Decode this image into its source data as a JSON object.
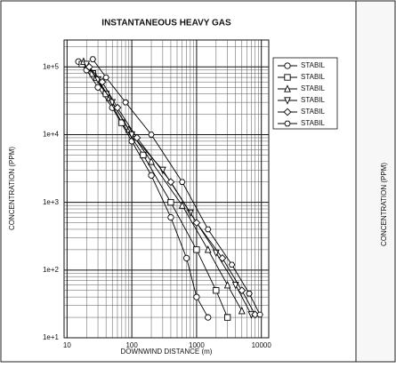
{
  "chart_data": {
    "type": "line",
    "title": "INSTANTANEOUS HEAVY GAS",
    "x_label": "DOWNWIND DISTANCE (m)",
    "y_label": "CONCENTRATION (PPM)",
    "log_x": true,
    "log_y": true,
    "grid": true,
    "legend": "upper right",
    "xlim": [
      9,
      13000
    ],
    "ylim": [
      10,
      250000
    ],
    "xticks": [
      10,
      100,
      1000,
      10000
    ],
    "yticks": [
      {
        "value": 10,
        "label": "1e+1"
      },
      {
        "value": 100,
        "label": "1e+2"
      },
      {
        "value": 1000,
        "label": "1e+3"
      },
      {
        "value": 10000,
        "label": "1e+4"
      },
      {
        "value": 100000,
        "label": "1e+5"
      }
    ],
    "series": [
      {
        "name": "STABIL",
        "color": "#000000",
        "marker": "circle",
        "x": [
          15,
          20,
          30,
          50,
          100,
          200,
          400,
          700,
          1000,
          1500
        ],
        "values": [
          120000,
          90000,
          50000,
          25000,
          8000,
          2500,
          600,
          150,
          40,
          20
        ]
      },
      {
        "name": "STABIL",
        "color": "#000000",
        "marker": "square",
        "x": [
          17,
          25,
          40,
          70,
          150,
          400,
          1000,
          2000,
          3000
        ],
        "values": [
          110000,
          80000,
          40000,
          15000,
          5000,
          1000,
          200,
          50,
          20
        ]
      },
      {
        "name": "STABIL",
        "color": "#000000",
        "marker": "triangle-up",
        "x": [
          18,
          28,
          45,
          90,
          200,
          600,
          1500,
          3000,
          5000
        ],
        "values": [
          120000,
          70000,
          35000,
          12000,
          4000,
          900,
          200,
          60,
          25
        ]
      },
      {
        "name": "STABIL",
        "color": "#000000",
        "marker": "triangle-down",
        "x": [
          20,
          30,
          50,
          100,
          300,
          800,
          2000,
          4000,
          7000
        ],
        "values": [
          110000,
          65000,
          30000,
          10000,
          3000,
          700,
          180,
          60,
          22
        ]
      },
      {
        "name": "STABIL",
        "color": "#000000",
        "marker": "diamond",
        "x": [
          22,
          35,
          60,
          120,
          400,
          1000,
          2500,
          5000,
          8000
        ],
        "values": [
          100000,
          60000,
          25000,
          9000,
          2000,
          500,
          150,
          50,
          22
        ]
      },
      {
        "name": "STABIL",
        "color": "#000000",
        "marker": "hexagon",
        "x": [
          25,
          40,
          80,
          200,
          600,
          1500,
          3500,
          6500,
          9500
        ],
        "values": [
          130000,
          70000,
          30000,
          10000,
          2000,
          400,
          120,
          45,
          22
        ]
      }
    ]
  },
  "side_panel": {
    "y_label": "CONCENTRATION (PPM)"
  }
}
